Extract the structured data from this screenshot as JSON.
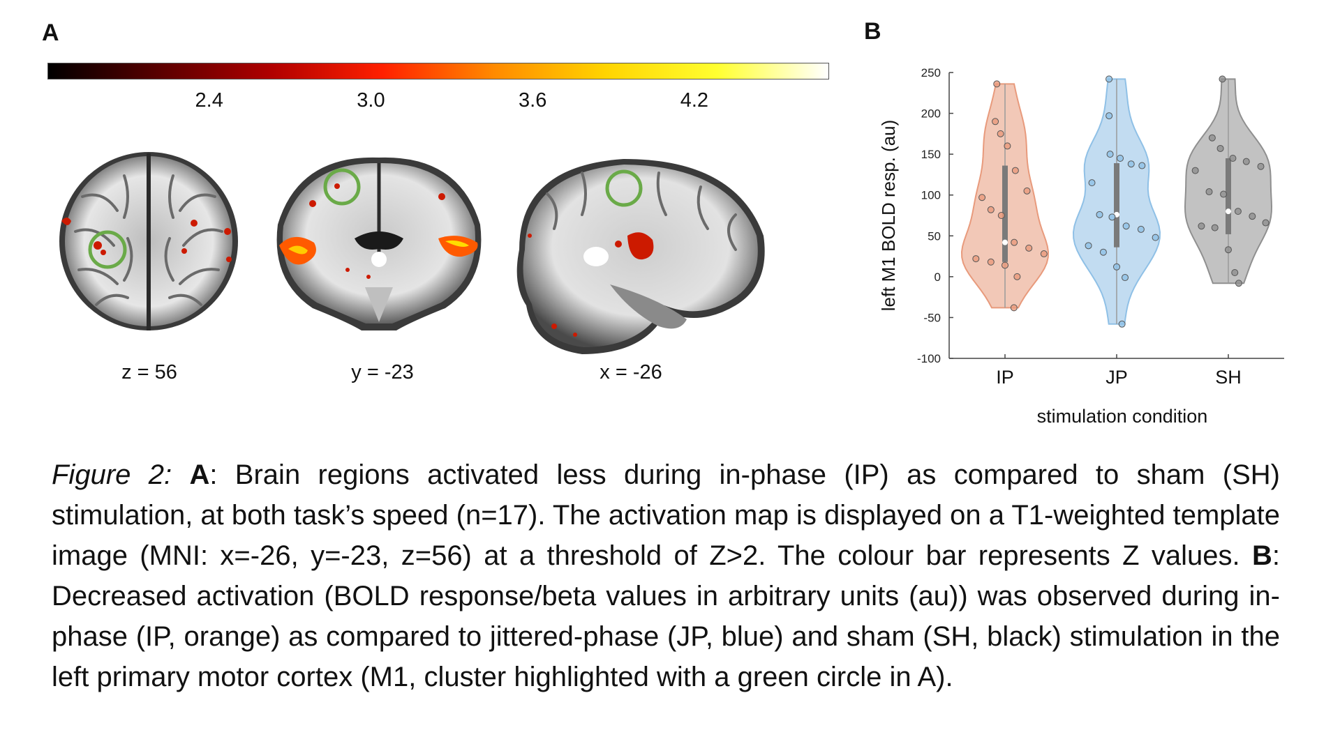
{
  "panel_a": {
    "label": "A",
    "colorbar": {
      "ticks": [
        "2.4",
        "3.0",
        "3.6",
        "4.2"
      ],
      "tick_values": [
        2.4,
        3.0,
        3.6,
        4.2
      ],
      "range": [
        1.8,
        4.7
      ],
      "colors": [
        "#000000",
        "#5a0000",
        "#b00000",
        "#ff2000",
        "#ff8a00",
        "#ffd400",
        "#ffff30",
        "#ffffff"
      ]
    },
    "slices": [
      {
        "label": "z = 56",
        "view": "axial"
      },
      {
        "label": "y = -23",
        "view": "coronal"
      },
      {
        "label": "x = -26",
        "view": "sagittal"
      }
    ],
    "highlight_color": "#6aaa48",
    "activation_color": "#cc1a00"
  },
  "panel_b": {
    "label": "B"
  },
  "chart_data": {
    "type": "violin",
    "xlabel": "stimulation condition",
    "ylabel": "left M1 BOLD resp. (au)",
    "ylim": [
      -100,
      250
    ],
    "yticks": [
      -100,
      -50,
      0,
      50,
      100,
      150,
      200,
      250
    ],
    "categories": [
      "IP",
      "JP",
      "SH"
    ],
    "series": [
      {
        "category": "IP",
        "color": "#e89a7c",
        "median": 42,
        "q1": 18,
        "q3": 136,
        "min": -38,
        "max": 236,
        "points": [
          236,
          190,
          175,
          160,
          130,
          105,
          97,
          82,
          75,
          42,
          35,
          28,
          22,
          18,
          14,
          0,
          -38
        ]
      },
      {
        "category": "JP",
        "color": "#8fc0e6",
        "median": 76,
        "q1": 36,
        "q3": 139,
        "min": -58,
        "max": 242,
        "points": [
          242,
          197,
          150,
          145,
          138,
          136,
          115,
          76,
          73,
          62,
          58,
          48,
          38,
          30,
          12,
          -1,
          -58
        ]
      },
      {
        "category": "SH",
        "color": "#8f8f8f",
        "median": 80,
        "q1": 52,
        "q3": 145,
        "min": -8,
        "max": 242,
        "points": [
          242,
          170,
          157,
          145,
          141,
          135,
          130,
          104,
          101,
          80,
          74,
          66,
          62,
          60,
          33,
          5,
          -8
        ]
      }
    ]
  },
  "caption": {
    "fig_label": "Figure 2:",
    "a_label": "A",
    "a_text": ": Brain regions activated less during in-phase (IP) as compared to sham (SH) stimulation, at both task’s speed (n=17). The activation map is displayed on a T1-weighted template image (MNI: x=-26, y=-23, z=56) at a threshold of Z>2. The colour bar represents Z values. ",
    "b_label": "B",
    "b_text": ": Decreased activation (BOLD response/beta values in arbitrary units (au)) was observed during in-phase (IP, orange) as compared to jittered-phase (JP, blue) and sham (SH, black) stimulation in the left primary motor cortex (M1, cluster highlighted with a green circle in A)."
  }
}
